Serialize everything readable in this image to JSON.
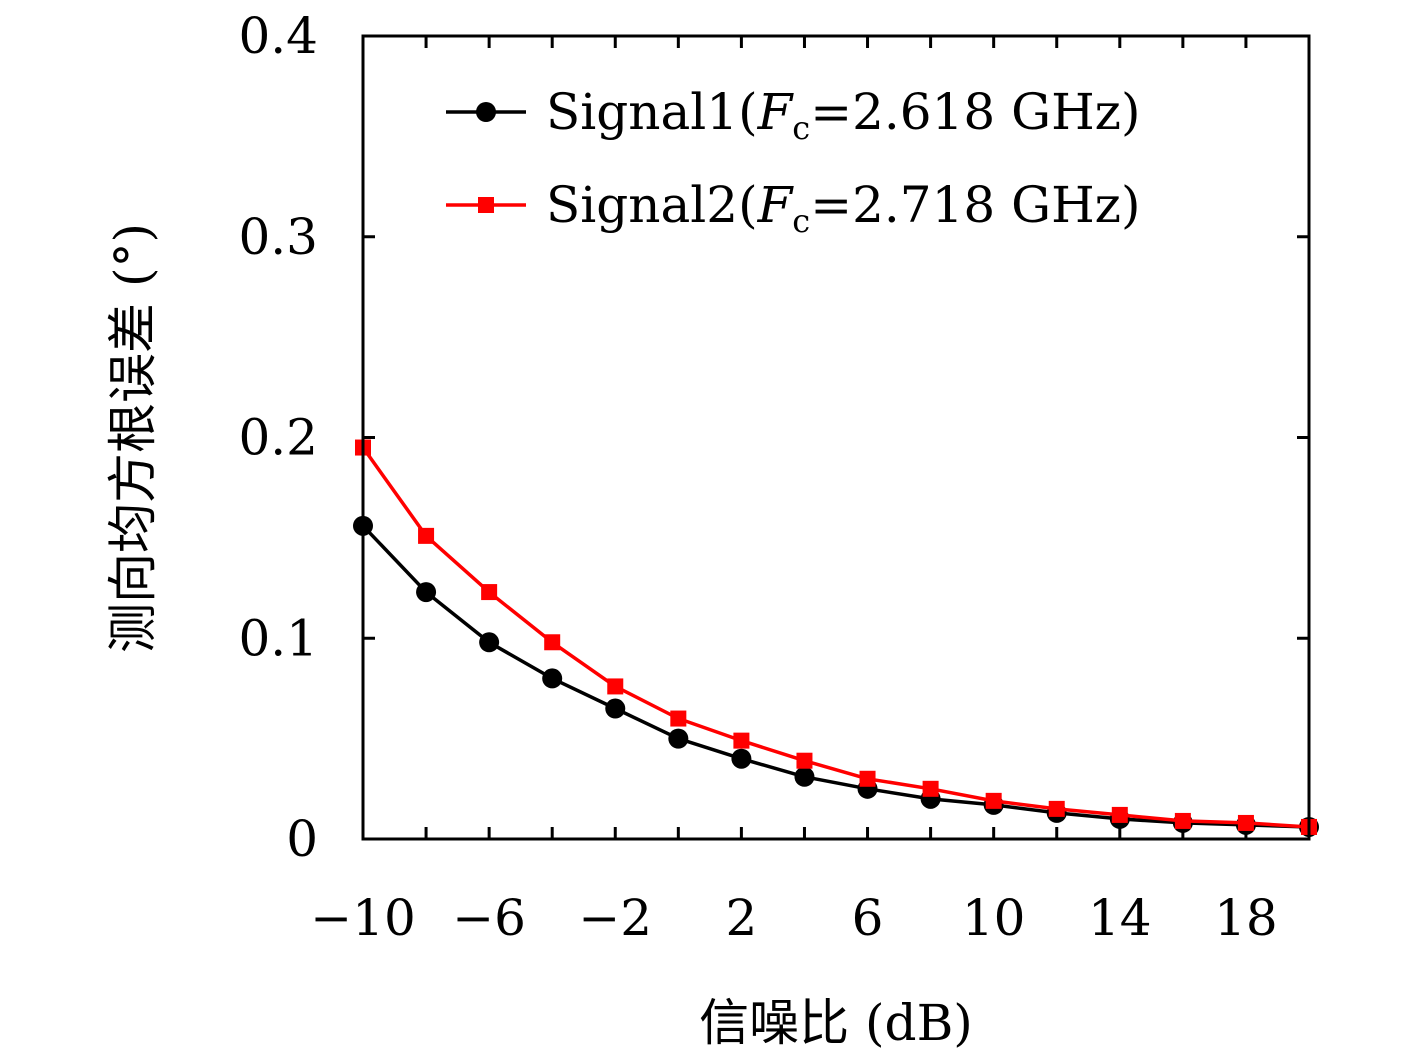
{
  "chart_data": {
    "type": "line",
    "xlabel": "信噪比 (dB)",
    "ylabel": "测向均方根误差 (°)",
    "xlim": [
      -10,
      20
    ],
    "ylim": [
      0,
      0.4
    ],
    "x_ticks": [
      -10,
      -6,
      -2,
      2,
      6,
      10,
      14,
      18
    ],
    "x_tick_labels": [
      "−10",
      "−6",
      "−2",
      "2",
      "6",
      "10",
      "14",
      "18"
    ],
    "y_ticks": [
      0,
      0.1,
      0.2,
      0.3,
      0.4
    ],
    "y_tick_labels": [
      "0",
      "0.1",
      "0.2",
      "0.3",
      "0.4"
    ],
    "grid": false,
    "legend_position": "top-right",
    "x": [
      -10,
      -8,
      -6,
      -4,
      -2,
      0,
      2,
      4,
      6,
      8,
      10,
      12,
      14,
      16,
      18,
      20
    ],
    "series": [
      {
        "name": "Signal1(Fc=2.618 GHz)",
        "legend": {
          "prefix": "Signal1(",
          "var": "F",
          "sub": "c",
          "suffix": "=2.618 GHz)"
        },
        "color": "#000000",
        "marker": "circle",
        "values": [
          0.156,
          0.123,
          0.098,
          0.08,
          0.065,
          0.05,
          0.04,
          0.031,
          0.025,
          0.02,
          0.017,
          0.013,
          0.01,
          0.008,
          0.007,
          0.006
        ]
      },
      {
        "name": "Signal2(Fc=2.718 GHz)",
        "legend": {
          "prefix": "Signal2(",
          "var": "F",
          "sub": "c",
          "suffix": "=2.718 GHz)"
        },
        "color": "#ff0000",
        "marker": "square",
        "values": [
          0.195,
          0.151,
          0.123,
          0.098,
          0.076,
          0.06,
          0.049,
          0.039,
          0.03,
          0.025,
          0.019,
          0.015,
          0.012,
          0.009,
          0.008,
          0.006
        ]
      }
    ]
  }
}
